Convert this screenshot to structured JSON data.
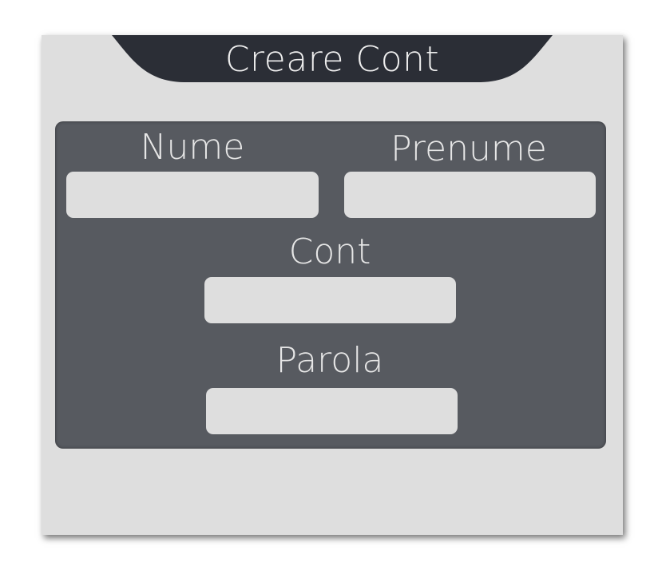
{
  "header": {
    "title": "Creare Cont"
  },
  "form": {
    "fields": [
      {
        "label": "Nume",
        "value": "",
        "placeholder": ""
      },
      {
        "label": "Prenume",
        "value": "",
        "placeholder": ""
      },
      {
        "label": "Cont",
        "value": "",
        "placeholder": ""
      },
      {
        "label": "Parola",
        "value": "",
        "placeholder": ""
      }
    ]
  },
  "colors": {
    "window_bg": "#dedede",
    "header_bg": "#2b2e36",
    "panel_bg": "#575a60",
    "input_bg": "#dedede",
    "label_text": "#e6e6e6"
  }
}
